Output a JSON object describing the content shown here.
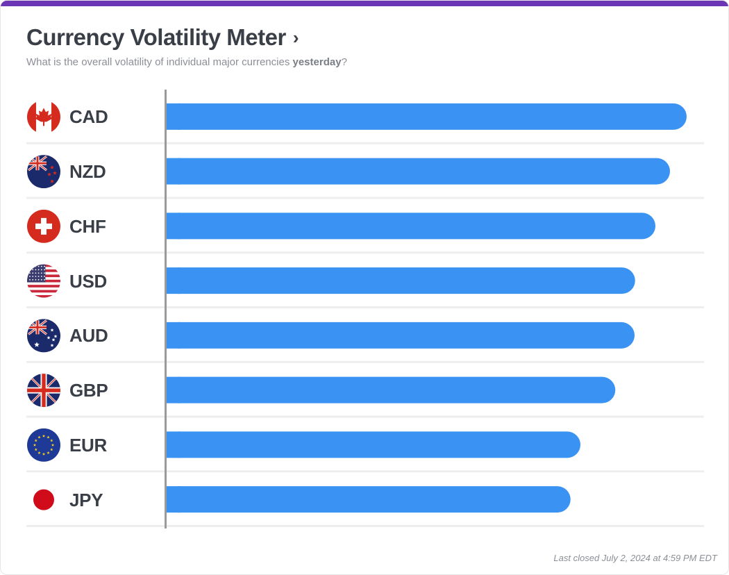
{
  "header": {
    "title": "Currency Volatility Meter",
    "chevron": "›",
    "subtitle_prefix": "What is the overall volatility of individual major currencies ",
    "subtitle_bold": "yesterday",
    "subtitle_suffix": "?"
  },
  "chart_data": {
    "type": "bar",
    "orientation": "horizontal",
    "title": "Currency Volatility Meter",
    "categories": [
      "CAD",
      "NZD",
      "CHF",
      "USD",
      "AUD",
      "GBP",
      "EUR",
      "JPY"
    ],
    "values": [
      100,
      96.8,
      94.0,
      90.1,
      90.0,
      86.3,
      79.6,
      77.7
    ],
    "xlim": [
      0,
      100
    ],
    "grid": false,
    "bar_color": "#3a93f3",
    "flags": [
      "canada-flag",
      "new-zealand-flag",
      "switzerland-flag",
      "usa-flag",
      "australia-flag",
      "uk-flag",
      "eu-flag",
      "japan-flag"
    ]
  },
  "footer": {
    "last_closed": "Last closed July 2, 2024 at 4:59 PM EDT"
  },
  "colors": {
    "accent": "#6c35b5",
    "bar": "#3a93f3",
    "text": "#3a3f47",
    "muted": "#8b8f96"
  }
}
